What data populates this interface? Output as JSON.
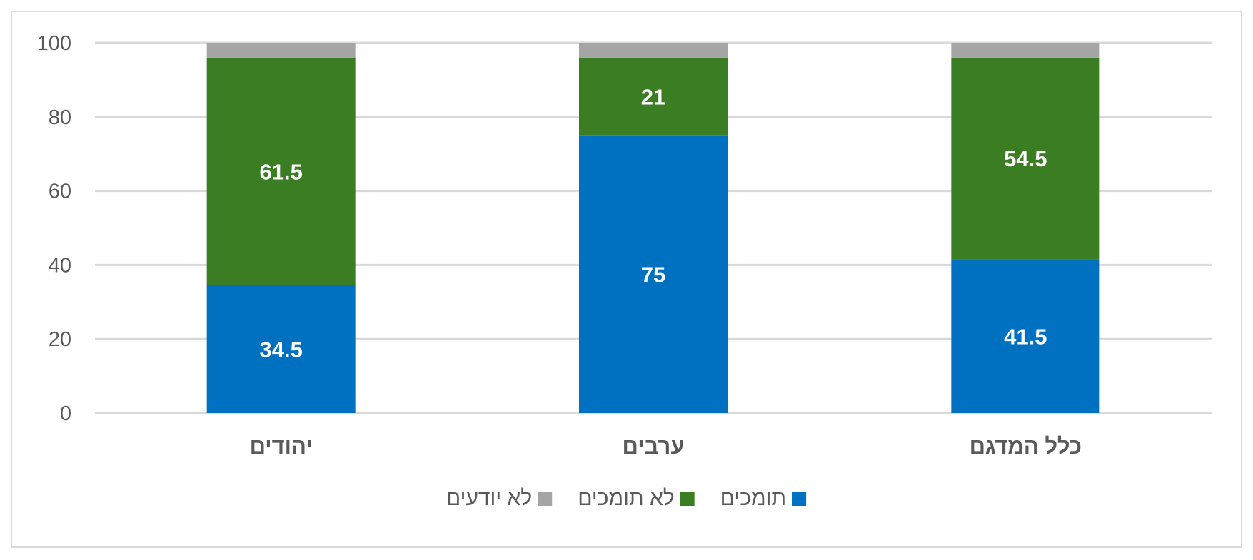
{
  "chart_data": {
    "type": "bar",
    "stacked": true,
    "categories": [
      "יהודים",
      "ערבים",
      "כלל המדגם"
    ],
    "series": [
      {
        "name": "תומכים",
        "values": [
          34.5,
          75,
          41.5
        ],
        "color": "#0070c0"
      },
      {
        "name": "לא תומכים",
        "values": [
          61.5,
          21,
          54.5
        ],
        "color": "#3b7d23"
      },
      {
        "name": "לא יודעים",
        "values": [
          4,
          4,
          4
        ],
        "color": "#a5a5a5"
      }
    ],
    "data_labels": [
      [
        "34.5",
        "75",
        "41.5"
      ],
      [
        "61.5",
        "21",
        "54.5"
      ],
      [
        "",
        "",
        ""
      ]
    ],
    "title": "",
    "xlabel": "",
    "ylabel": "",
    "ylim": [
      0,
      100
    ],
    "yticks": [
      0,
      20,
      40,
      60,
      80,
      100
    ],
    "grid": true,
    "legend": "bottom",
    "gridline_color": "#d9d9d9"
  }
}
